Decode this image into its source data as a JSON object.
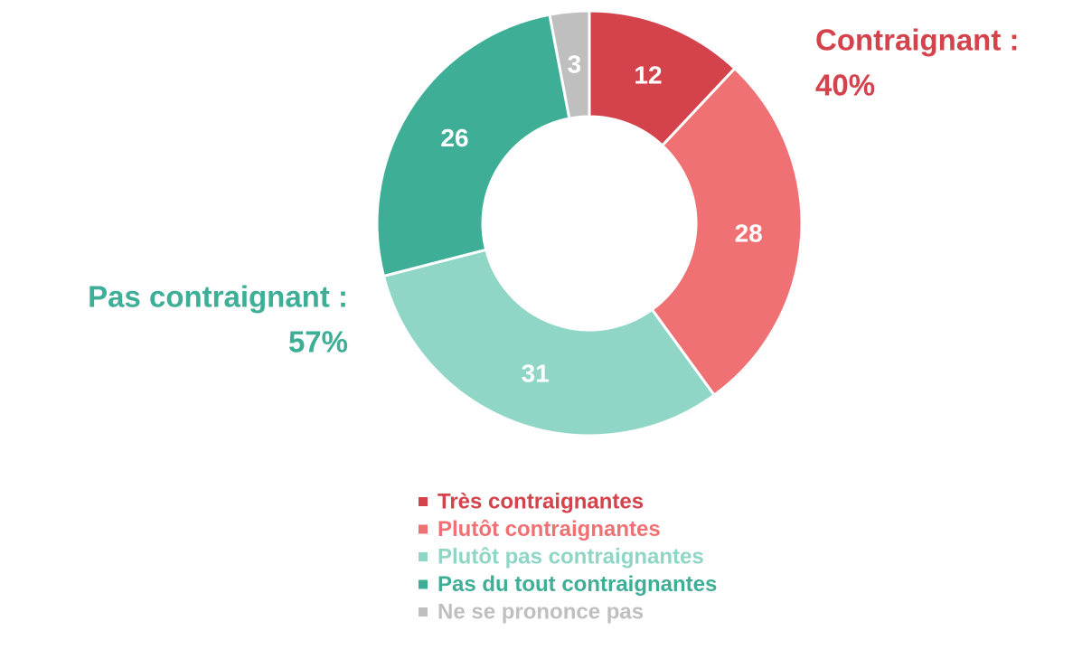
{
  "chart_data": {
    "type": "pie",
    "donut": true,
    "categories": [
      "Très contraignantes",
      "Plutôt contraignantes",
      "Plutôt pas contraignantes",
      "Pas du tout contraignantes",
      "Ne se prononce pas"
    ],
    "values": [
      12,
      28,
      31,
      26,
      3
    ],
    "colors": [
      "#d4424b",
      "#f07173",
      "#8fd6c7",
      "#3fae96",
      "#bfbfbf"
    ],
    "annotations": [
      {
        "lines": [
          "Contraignant :",
          "40%"
        ],
        "color": "#d4424b"
      },
      {
        "lines": [
          "Pas contraignant :",
          "57%"
        ],
        "color": "#3fae96"
      }
    ]
  }
}
